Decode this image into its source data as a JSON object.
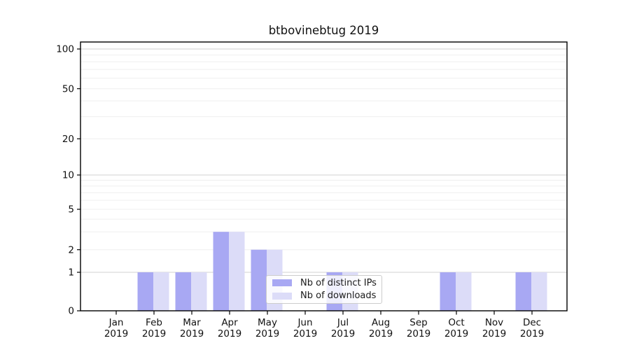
{
  "chart_data": {
    "type": "bar",
    "title": "btbovinebtug 2019",
    "categories": [
      "Jan 2019",
      "Feb 2019",
      "Mar 2019",
      "Apr 2019",
      "May 2019",
      "Jun 2019",
      "Jul 2019",
      "Aug 2019",
      "Sep 2019",
      "Oct 2019",
      "Nov 2019",
      "Dec 2019"
    ],
    "series": [
      {
        "name": "Nb of distinct IPs",
        "color": "#a8a8f3",
        "values": [
          0,
          1,
          1,
          3,
          2,
          0,
          1,
          0,
          0,
          1,
          0,
          1
        ]
      },
      {
        "name": "Nb of downloads",
        "color": "#dcdcf8",
        "values": [
          0,
          1,
          1,
          3,
          2,
          0,
          1,
          0,
          0,
          1,
          0,
          1
        ]
      }
    ],
    "xlabel": "",
    "ylabel": "",
    "yscale": "symlog",
    "ylim": [
      0,
      113
    ],
    "y_tick_values": [
      100,
      50,
      20,
      10,
      5,
      2,
      1,
      0
    ],
    "y_tick_labels": [
      "100",
      "50",
      "20",
      "10",
      "5",
      "2",
      "1",
      "0"
    ],
    "minor_grid_values": [
      2,
      3,
      4,
      5,
      6,
      7,
      8,
      9,
      20,
      30,
      40,
      50,
      60,
      70,
      80,
      90
    ],
    "major_grid_values": [
      1,
      10,
      100
    ],
    "grid": "horizontal, log major+minor",
    "legend_position": "inside lower-center"
  },
  "colors": {
    "background": "#ffffff",
    "spine": "#000000",
    "tick": "#000000",
    "text": "#111111",
    "grid_major": "#d2d2d2",
    "grid_minor": "#efefef",
    "bar_distinct_ips": "#a8a8f3",
    "bar_downloads": "#dcdcf8",
    "legend_border": "#cccccc"
  }
}
